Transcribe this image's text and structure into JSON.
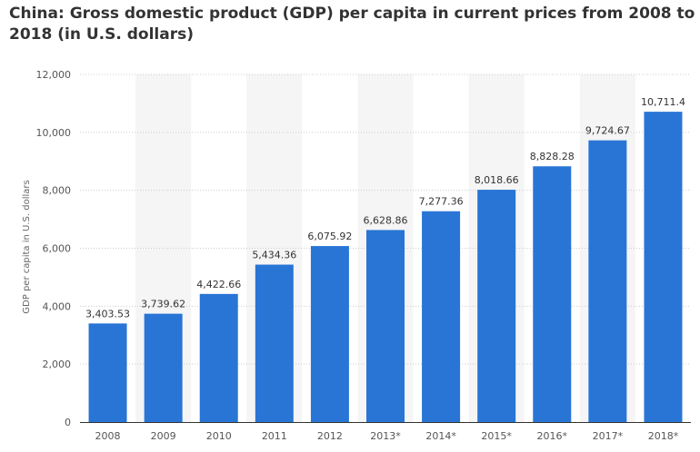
{
  "title": "China: Gross domestic product (GDP) per capita in current prices from 2008 to 2018 (in U.S. dollars)",
  "colors": {
    "bar": "#2875d6",
    "band": "#f5f5f5",
    "grid": "#cccccc",
    "axis": "#333333"
  },
  "chart_data": {
    "type": "bar",
    "title": "China: Gross domestic product (GDP) per capita in current prices from 2008 to 2018 (in U.S. dollars)",
    "xlabel": "",
    "ylabel": "GDP per capita in U.S. dollars",
    "ylim": [
      0,
      12000
    ],
    "yticks": [
      0,
      2000,
      4000,
      6000,
      8000,
      10000,
      12000
    ],
    "ytick_labels": [
      "0",
      "2,000",
      "4,000",
      "6,000",
      "8,000",
      "10,000",
      "12,000"
    ],
    "grid": true,
    "categories": [
      "2008",
      "2009",
      "2010",
      "2011",
      "2012",
      "2013*",
      "2014*",
      "2015*",
      "2016*",
      "2017*",
      "2018*"
    ],
    "values": [
      3403.53,
      3739.62,
      4422.66,
      5434.36,
      6075.92,
      6628.86,
      7277.36,
      8018.66,
      8828.28,
      9724.67,
      10711.4
    ],
    "value_labels": [
      "3,403.53",
      "3,739.62",
      "4,422.66",
      "5,434.36",
      "6,075.92",
      "6,628.86",
      "7,277.36",
      "8,018.66",
      "8,828.28",
      "9,724.67",
      "10,711.4"
    ]
  }
}
